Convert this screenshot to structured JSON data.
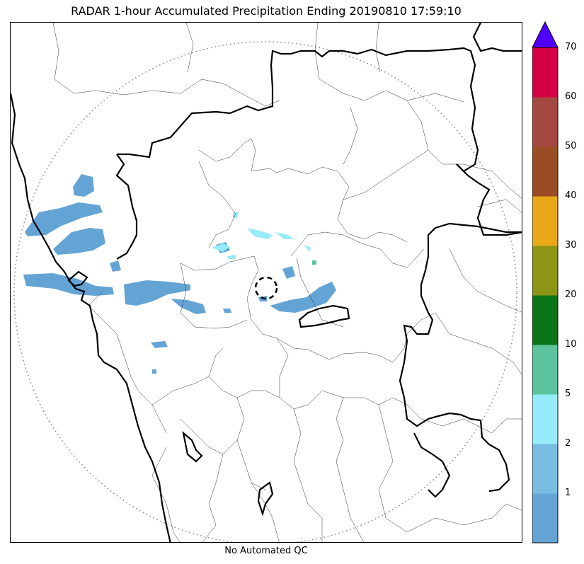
{
  "title": "RADAR 1-hour Accumulated Precipitation Ending 20190810 17:59:10",
  "footnote": "No Automated QC",
  "colorbar": {
    "tick_labels": [
      "1",
      "2",
      "5",
      "10",
      "20",
      "30",
      "40",
      "50",
      "60",
      "70"
    ],
    "colors": [
      "#64a4d5",
      "#78bce1",
      "#96ecfa",
      "#5cc49c",
      "#0c7419",
      "#8c9614",
      "#e8a818",
      "#9a4c24",
      "#a44842",
      "#d40044"
    ],
    "extend_color": "#5000ff"
  },
  "map": {
    "range_ring": "dotted",
    "radar_site_marker": "dashed-circle"
  }
}
